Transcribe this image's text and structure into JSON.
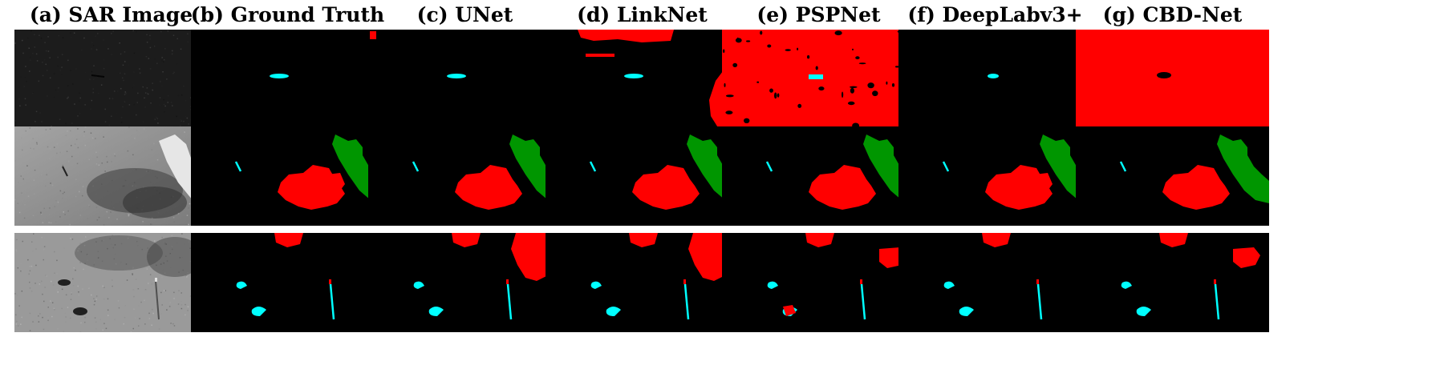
{
  "figure": {
    "columns": [
      {
        "id": "a",
        "title": "(a) SAR Image"
      },
      {
        "id": "b",
        "title": "(b) Ground Truth"
      },
      {
        "id": "c",
        "title": "(c) UNet"
      },
      {
        "id": "d",
        "title": "(d) LinkNet"
      },
      {
        "id": "e",
        "title": "(e) PSPNet"
      },
      {
        "id": "f",
        "title": "(f) DeepLabv3+"
      },
      {
        "id": "g",
        "title": "(g) CBD-Net"
      }
    ],
    "rows": 3
  },
  "colors": {
    "background": "#000000",
    "oil_spill": "#ff0000",
    "ship": "#00ffff",
    "land": "#009600"
  }
}
